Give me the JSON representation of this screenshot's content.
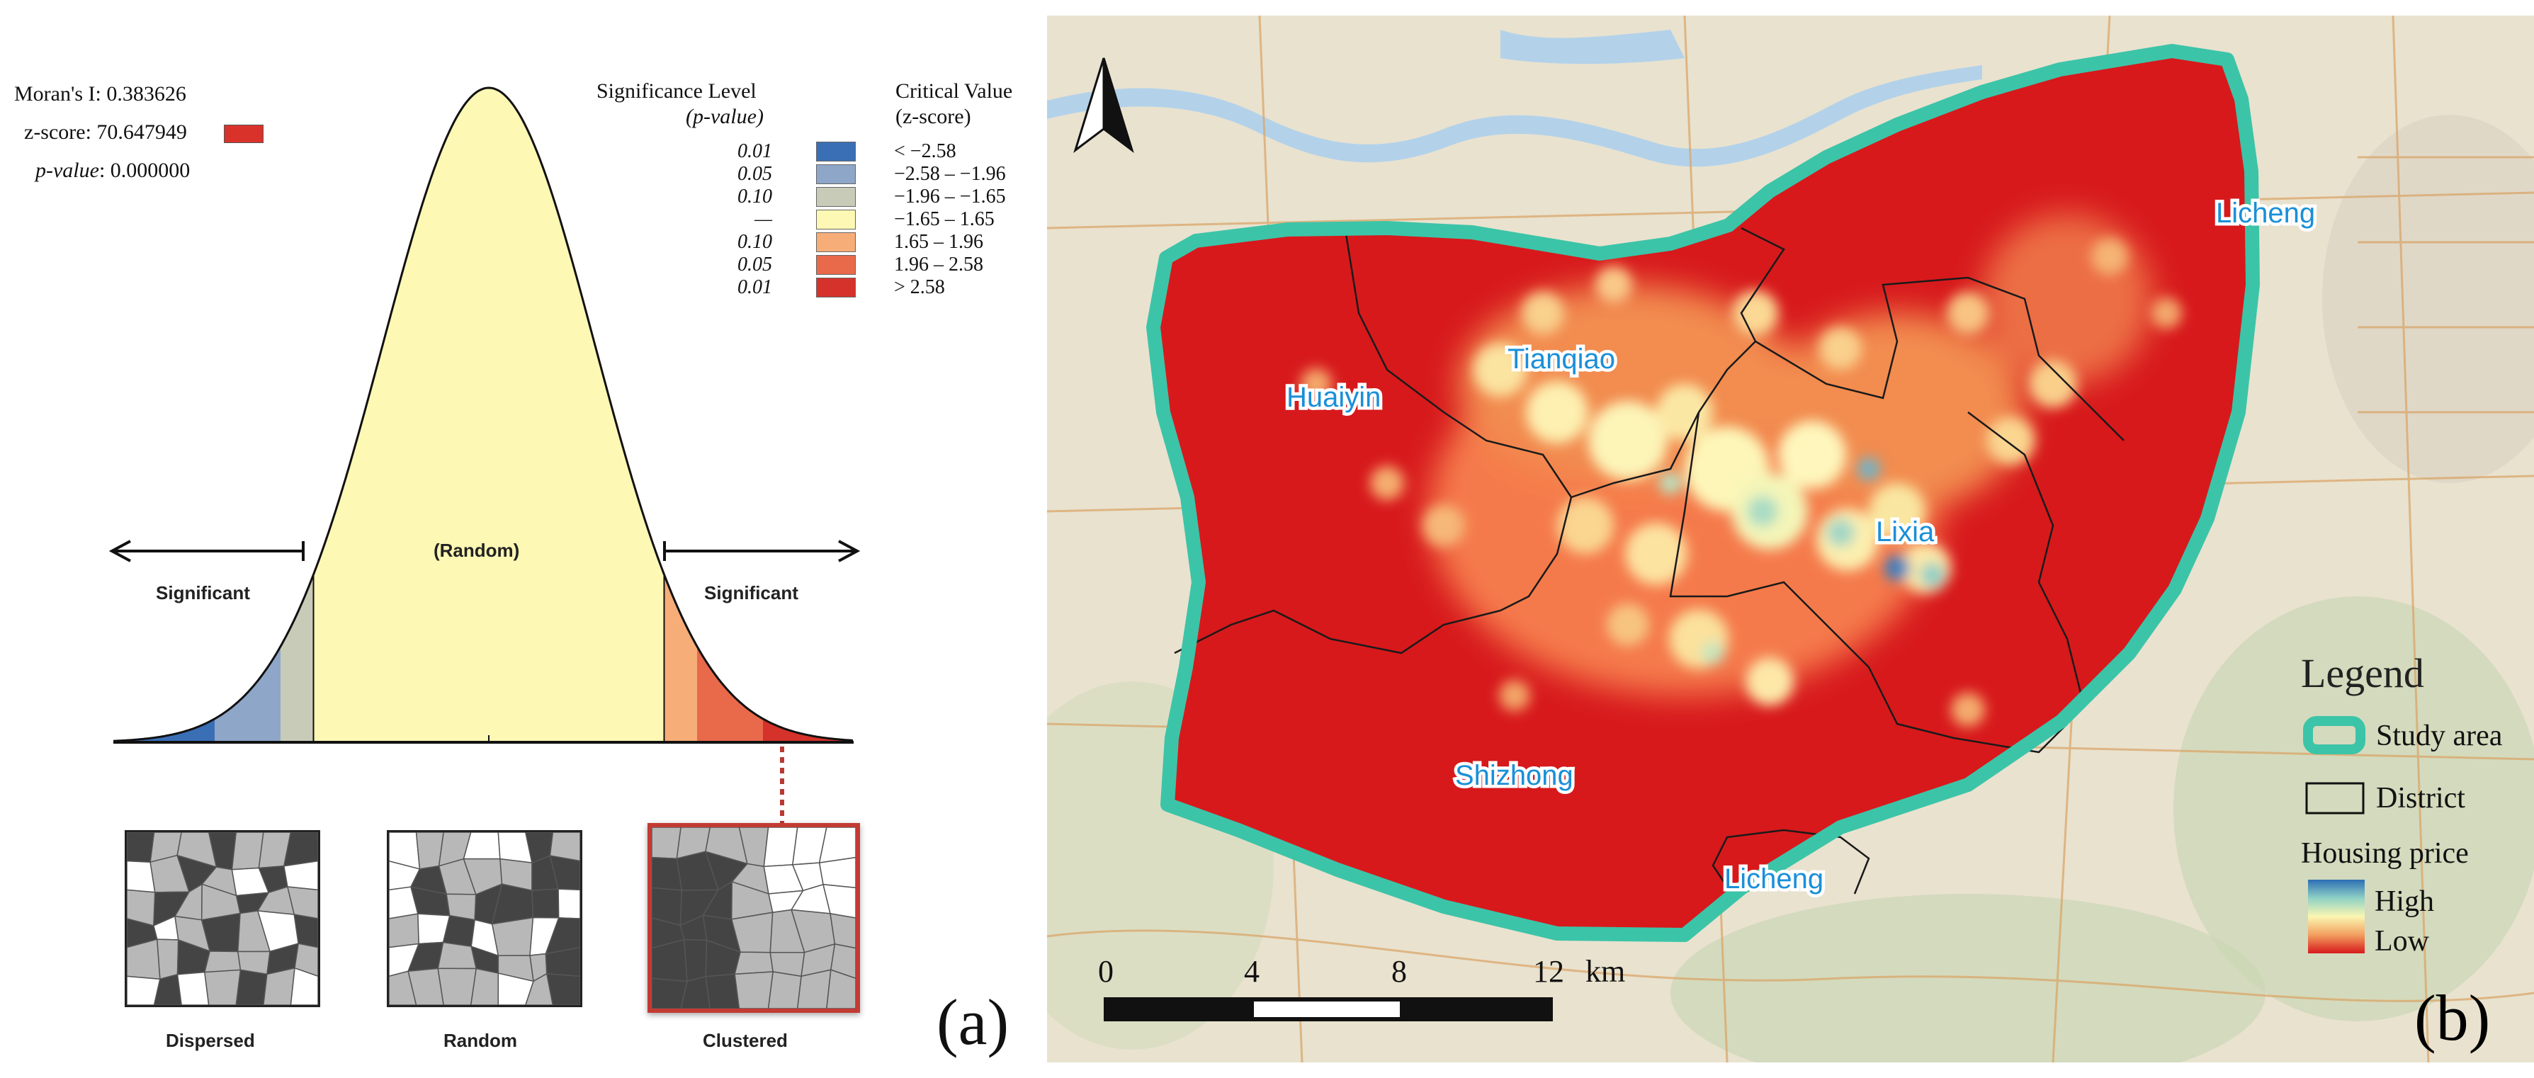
{
  "panel_a": {
    "label": "(a)",
    "stats": {
      "morans_i": "Moran's I: 0.383626",
      "z_score": "z-score: 70.647949",
      "p_value_label": "p-value",
      "p_value_num": ": 0.000000",
      "zscore_swatch_color": "#d9322b"
    },
    "legend": {
      "sig_header_1": "Significance Level",
      "sig_header_2": "(p-value)",
      "crit_header_1": "Critical Value",
      "crit_header_2": "(z-score)",
      "rows": [
        {
          "p": "0.01",
          "z": "< −2.58",
          "color": "#3a6fb5"
        },
        {
          "p": "0.05",
          "z": "−2.58 – −1.96",
          "color": "#8ea6c8"
        },
        {
          "p": "0.10",
          "z": "−1.96 – −1.65",
          "color": "#c7cbb8"
        },
        {
          "p": "—",
          "z": "−1.65 – 1.65",
          "color": "#fdf8b4"
        },
        {
          "p": "0.10",
          "z": "1.65 – 1.96",
          "color": "#f6ad78"
        },
        {
          "p": "0.05",
          "z": "1.96 – 2.58",
          "color": "#e9694b"
        },
        {
          "p": "0.01",
          "z": "> 2.58",
          "color": "#d4322a"
        }
      ]
    },
    "curve": {
      "random_label": "(Random)",
      "significant_left": "Significant",
      "significant_right": "Significant"
    },
    "patterns": [
      {
        "label": "Dispersed",
        "kind": "dispersed"
      },
      {
        "label": "Random",
        "kind": "random"
      },
      {
        "label": "Clustered",
        "kind": "clustered"
      }
    ]
  },
  "panel_b": {
    "label": "(b)",
    "districts": [
      "Licheng",
      "Tianqiao",
      "Huaiyin",
      "Lixia",
      "Shizhong",
      "Licheng"
    ],
    "legend": {
      "title": "Legend",
      "study_area": "Study area",
      "district": "District",
      "housing_price": "Housing price",
      "high": "High",
      "low": "Low",
      "study_area_color": "#3cc4a8",
      "ramp_colors": [
        "#2c6fb4",
        "#8fd1c4",
        "#fbf6b2",
        "#f29f5e",
        "#d7191c"
      ]
    },
    "scale_bar": {
      "ticks": [
        "0",
        "4",
        "8",
        "12"
      ],
      "unit": "km"
    }
  }
}
